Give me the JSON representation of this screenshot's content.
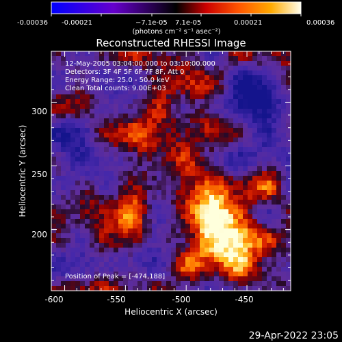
{
  "colorbar": {
    "tick_labels": [
      "-0.00036",
      "-0.00021",
      "−7.1e-05",
      "7.1e-05",
      "0.00021",
      "0.00036"
    ],
    "units": "(photons cm⁻² s⁻¹ asec⁻²)",
    "range": [
      -0.00036,
      0.00036
    ]
  },
  "plot": {
    "title": "Reconstructed RHESSI Image",
    "xlabel": "Heliocentric X (arcsec)",
    "ylabel": "Heliocentric Y (arcsec)",
    "x_ticks": [
      "-600",
      "-550",
      "-500",
      "-450"
    ],
    "y_ticks": [
      "200",
      "250",
      "300"
    ],
    "xlim": [
      -611,
      -414
    ],
    "ylim": [
      152,
      340
    ]
  },
  "annotations": {
    "time_range": "12-May-2005 03:04:00.000 to 03:10:00.000",
    "detectors": "Detectors: 3F 4F 5F 6F 7F 8F, Att 0",
    "energy": "Energy Range: 25.0 - 50.0 keV",
    "clean": "Clean     Total counts: 9.00E+03",
    "peak": "Position of Peak = [-474,188]"
  },
  "footer": {
    "timestamp": "29-Apr-2022 23:05"
  },
  "chart_data": {
    "type": "heatmap",
    "title": "Reconstructed RHESSI Image",
    "xlabel": "Heliocentric X (arcsec)",
    "ylabel": "Heliocentric Y (arcsec)",
    "xlim": [
      -611,
      -414
    ],
    "ylim": [
      152,
      340
    ],
    "peak": [
      -474,
      188
    ],
    "colorbar_range": [
      -0.00036,
      0.00036
    ]
  }
}
